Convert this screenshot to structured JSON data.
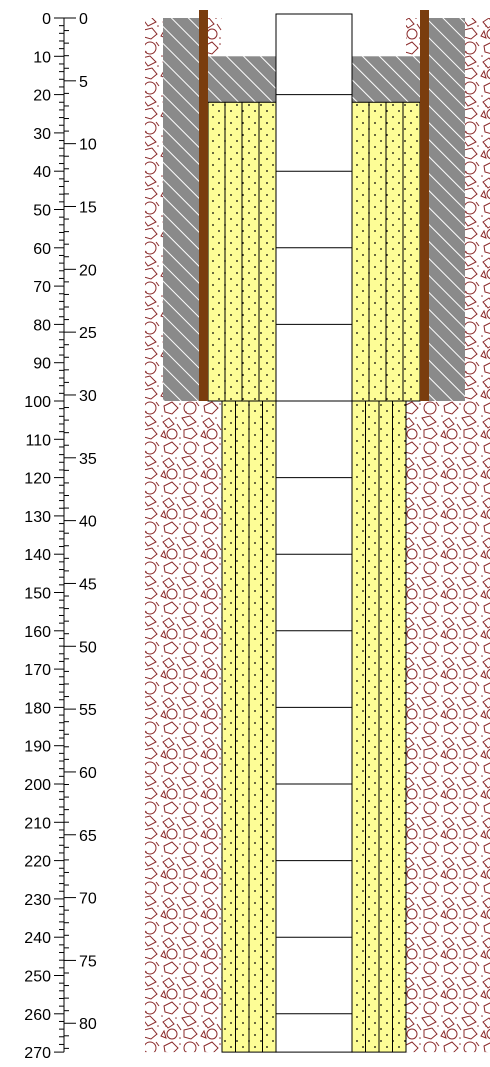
{
  "depth_scale_ft": {
    "labels": [
      "0",
      "10",
      "20",
      "30",
      "40",
      "50",
      "60",
      "70",
      "80",
      "90",
      "100",
      "110",
      "120",
      "130",
      "140",
      "150",
      "160",
      "170",
      "180",
      "190",
      "200",
      "210",
      "220",
      "230",
      "240",
      "250",
      "260",
      "270"
    ]
  },
  "depth_scale_m": {
    "labels": [
      "0",
      "5",
      "10",
      "15",
      "20",
      "25",
      "30",
      "35",
      "40",
      "45",
      "50",
      "55",
      "60",
      "65",
      "70",
      "75",
      "80"
    ]
  },
  "colors": {
    "casing": "#7a3d0e",
    "surface_seal": "#8a8a8a",
    "filter_pack": "#fdfd96",
    "formation_symbols": "#8b2a2a",
    "outline": "#000000"
  },
  "units": {
    "surface_seal_depth_ft": [
      0,
      100
    ],
    "surface_seal_step_depth_ft": 10,
    "upper_filter_pack_depth_ft": [
      22,
      100
    ],
    "lower_filter_pack_depth_ft": [
      100,
      270
    ],
    "casing_depth_ft": [
      0,
      100
    ],
    "formation_depth_ft": [
      0,
      270
    ],
    "pipe_joint_depths_ft": [
      0,
      20,
      40,
      60,
      80,
      100,
      120,
      140,
      160,
      180,
      200,
      220,
      240,
      260
    ]
  }
}
